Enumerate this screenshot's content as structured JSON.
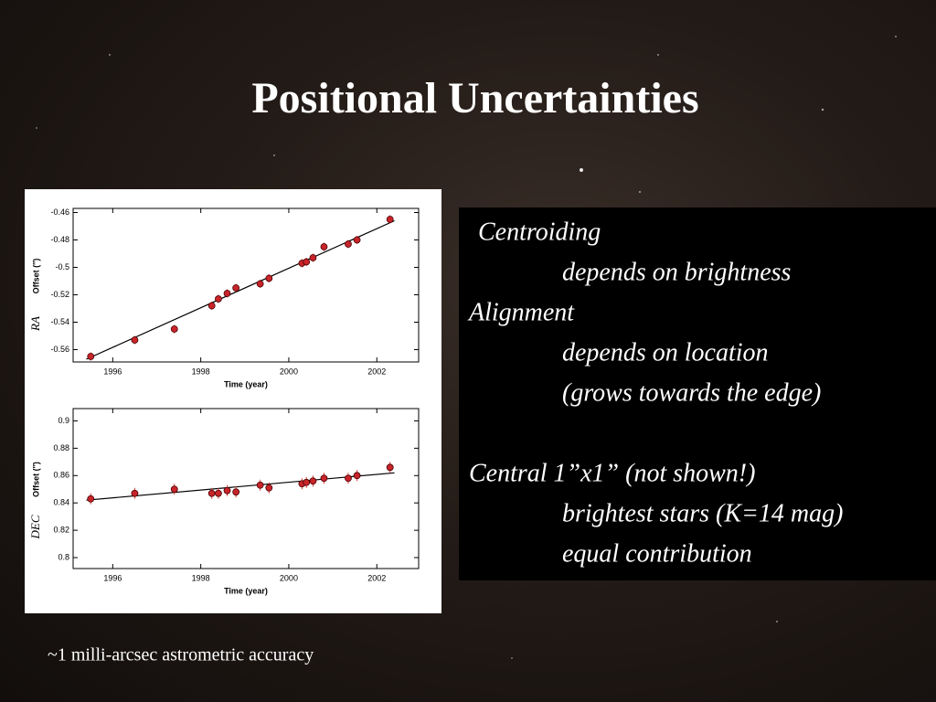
{
  "slide": {
    "title": "Positional Uncertainties",
    "groups": [
      {
        "heading": "Centroiding",
        "items": [
          "depends on brightness"
        ]
      },
      {
        "heading": "Alignment",
        "items": [
          "depends on location",
          "(grows towards the edge)"
        ]
      },
      {
        "heading": "Central 1”x1” (not shown!)",
        "items": [
          "brightest stars (K=14 mag)",
          "equal contribution"
        ]
      }
    ],
    "caption": "~1 milli-arcsec astrometric accuracy"
  },
  "chart_data": [
    {
      "type": "scatter",
      "label": "RA",
      "ylabel": "Offset (″)",
      "xlabel": "Time (year)",
      "color": "#c8242a",
      "x": [
        1995.5,
        1996.5,
        1997.4,
        1998.25,
        1998.4,
        1998.6,
        1998.8,
        1999.35,
        1999.55,
        2000.3,
        2000.4,
        2000.55,
        2000.8,
        2001.35,
        2001.55,
        2002.3
      ],
      "values": [
        -0.565,
        -0.553,
        -0.545,
        -0.528,
        -0.523,
        -0.519,
        -0.515,
        -0.512,
        -0.508,
        -0.497,
        -0.496,
        -0.493,
        -0.485,
        -0.483,
        -0.48,
        -0.465
      ],
      "errors": [
        0.003,
        0.003,
        0.003,
        0.003,
        0.003,
        0.003,
        0.003,
        0.003,
        0.003,
        0.003,
        0.003,
        0.003,
        0.003,
        0.003,
        0.003,
        0.003
      ],
      "fit": {
        "x": [
          1995.4,
          2002.4
        ],
        "values": [
          -0.567,
          -0.466
        ]
      },
      "xlim": [
        1995.1,
        2002.95
      ],
      "ylim": [
        -0.569,
        -0.457
      ],
      "xticks": [
        1996,
        1998,
        2000,
        2002
      ],
      "yticks": [
        -0.56,
        -0.54,
        -0.52,
        -0.5,
        -0.48,
        -0.46
      ]
    },
    {
      "type": "scatter",
      "label": "DEC",
      "ylabel": "Offset (″)",
      "xlabel": "Time (year)",
      "color": "#c8242a",
      "x": [
        1995.5,
        1996.5,
        1997.4,
        1998.25,
        1998.4,
        1998.6,
        1998.8,
        1999.35,
        1999.55,
        2000.3,
        2000.4,
        2000.55,
        2000.8,
        2001.35,
        2001.55,
        2002.3
      ],
      "values": [
        0.843,
        0.847,
        0.85,
        0.847,
        0.847,
        0.849,
        0.848,
        0.853,
        0.851,
        0.854,
        0.855,
        0.856,
        0.858,
        0.858,
        0.86,
        0.866
      ],
      "errors": [
        0.004,
        0.004,
        0.004,
        0.004,
        0.004,
        0.004,
        0.004,
        0.004,
        0.004,
        0.004,
        0.004,
        0.004,
        0.004,
        0.004,
        0.004,
        0.004
      ],
      "fit": {
        "x": [
          1995.4,
          2002.4
        ],
        "values": [
          0.842,
          0.862
        ]
      },
      "xlim": [
        1995.1,
        2002.95
      ],
      "ylim": [
        0.792,
        0.909
      ],
      "xticks": [
        1996,
        1998,
        2000,
        2002
      ],
      "yticks": [
        0.8,
        0.82,
        0.84,
        0.86,
        0.88,
        0.9
      ]
    }
  ]
}
